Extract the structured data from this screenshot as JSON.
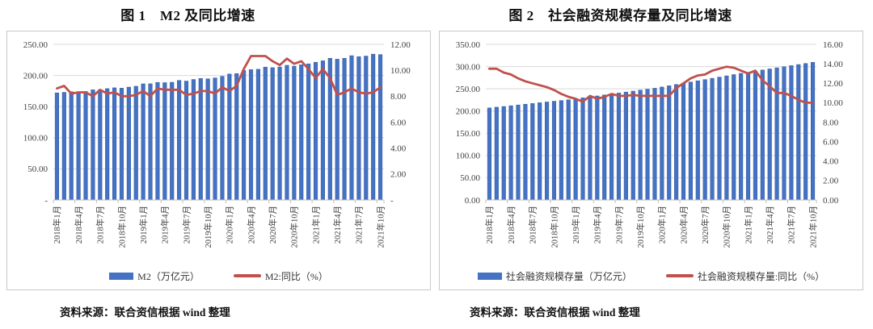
{
  "source_note": "资料来源：联合资信根据 wind 整理",
  "colors": {
    "bar": "#4472C4",
    "bar_edge": "#345A9E",
    "line": "#C0504D",
    "grid": "#d9d9d9",
    "axis_line": "#bfbfbf",
    "tick_text": "#404040",
    "box_border": "#c9c9c9"
  },
  "chart_data": [
    {
      "type": "bar",
      "subtype": "combo-bar-line",
      "title": "图 1　M2 及同比增速",
      "x": [
        "2018年1月",
        "2018年2月",
        "2018年3月",
        "2018年4月",
        "2018年5月",
        "2018年6月",
        "2018年7月",
        "2018年8月",
        "2018年9月",
        "2018年10月",
        "2018年11月",
        "2018年12月",
        "2019年1月",
        "2019年2月",
        "2019年3月",
        "2019年4月",
        "2019年5月",
        "2019年6月",
        "2019年7月",
        "2019年8月",
        "2019年9月",
        "2019年10月",
        "2019年11月",
        "2019年12月",
        "2020年1月",
        "2020年2月",
        "2020年3月",
        "2020年4月",
        "2020年5月",
        "2020年6月",
        "2020年7月",
        "2020年8月",
        "2020年9月",
        "2020年10月",
        "2020年11月",
        "2020年12月",
        "2021年1月",
        "2021年2月",
        "2021年3月",
        "2021年4月",
        "2021年5月",
        "2021年6月",
        "2021年7月",
        "2021年8月",
        "2021年9月",
        "2021年10月"
      ],
      "x_label_every": 3,
      "grid": true,
      "legend_position": "bottom",
      "left_axis": {
        "min": 0,
        "max": 250,
        "step": 50,
        "labels": [
          "250.00",
          "200.00",
          "150.00",
          "100.00",
          "50.00",
          "-"
        ]
      },
      "right_axis": {
        "min": 0,
        "max": 12,
        "step": 2,
        "labels": [
          "12.00",
          "10.00",
          "8.00",
          "6.00",
          "4.00",
          "2.00",
          "-"
        ]
      },
      "series": [
        {
          "name": "M2（万亿元）",
          "kind": "bar",
          "axis": "left",
          "color": "#4472C4",
          "values": [
            172.1,
            172.9,
            174.0,
            173.8,
            174.3,
            177.0,
            177.1,
            178.9,
            180.2,
            179.6,
            181.3,
            182.7,
            186.6,
            186.7,
            188.9,
            188.5,
            189.1,
            192.1,
            191.0,
            193.6,
            195.2,
            194.6,
            196.1,
            198.7,
            202.3,
            203.1,
            208.1,
            209.4,
            210.0,
            213.5,
            212.6,
            213.7,
            216.4,
            215.0,
            217.2,
            218.7,
            221.3,
            223.6,
            227.7,
            226.2,
            227.6,
            231.8,
            230.2,
            231.2,
            234.3,
            233.6
          ]
        },
        {
          "name": "M2:同比（%）",
          "kind": "line",
          "axis": "right",
          "color": "#C0504D",
          "values": [
            8.6,
            8.8,
            8.2,
            8.3,
            8.3,
            8.0,
            8.5,
            8.2,
            8.3,
            8.0,
            8.0,
            8.1,
            8.4,
            8.0,
            8.6,
            8.5,
            8.5,
            8.5,
            8.1,
            8.2,
            8.4,
            8.4,
            8.2,
            8.7,
            8.4,
            8.8,
            10.1,
            11.1,
            11.1,
            11.1,
            10.7,
            10.4,
            10.9,
            10.5,
            10.7,
            10.1,
            9.4,
            10.1,
            9.4,
            8.1,
            8.3,
            8.6,
            8.3,
            8.2,
            8.3,
            8.7
          ]
        }
      ]
    },
    {
      "type": "bar",
      "subtype": "combo-bar-line",
      "title": "图 2　社会融资规模存量及同比增速",
      "x": [
        "2018年1月",
        "2018年2月",
        "2018年3月",
        "2018年4月",
        "2018年5月",
        "2018年6月",
        "2018年7月",
        "2018年8月",
        "2018年9月",
        "2018年10月",
        "2018年11月",
        "2018年12月",
        "2019年1月",
        "2019年2月",
        "2019年3月",
        "2019年4月",
        "2019年5月",
        "2019年6月",
        "2019年7月",
        "2019年8月",
        "2019年9月",
        "2019年10月",
        "2019年11月",
        "2019年12月",
        "2020年1月",
        "2020年2月",
        "2020年3月",
        "2020年4月",
        "2020年5月",
        "2020年6月",
        "2020年7月",
        "2020年8月",
        "2020年9月",
        "2020年10月",
        "2020年11月",
        "2020年12月",
        "2021年1月",
        "2021年2月",
        "2021年3月",
        "2021年4月",
        "2021年5月",
        "2021年6月",
        "2021年7月",
        "2021年8月",
        "2021年9月",
        "2021年10月"
      ],
      "x_label_every": 3,
      "grid": true,
      "legend_position": "bottom",
      "left_axis": {
        "min": 0,
        "max": 350,
        "step": 50,
        "labels": [
          "350.00",
          "300.00",
          "250.00",
          "200.00",
          "150.00",
          "100.00",
          "50.00",
          "0.00"
        ]
      },
      "right_axis": {
        "min": 0,
        "max": 16,
        "step": 2,
        "labels": [
          "16.00",
          "14.00",
          "12.00",
          "10.00",
          "8.00",
          "6.00",
          "4.00",
          "2.00",
          "0.00"
        ]
      },
      "series": [
        {
          "name": "社会融资规模存量（万亿元）",
          "kind": "bar",
          "axis": "left",
          "color": "#4472C4",
          "values": [
            207.0,
            208.7,
            210.3,
            212.0,
            213.7,
            215.4,
            217.0,
            218.7,
            220.4,
            222.1,
            223.7,
            225.4,
            227.6,
            229.7,
            231.9,
            234.0,
            236.2,
            238.4,
            240.5,
            242.7,
            244.8,
            247.0,
            249.2,
            251.3,
            254.1,
            256.9,
            259.7,
            262.5,
            265.3,
            268.1,
            270.8,
            273.6,
            276.4,
            279.2,
            282.0,
            284.8,
            287.3,
            289.7,
            292.2,
            294.7,
            297.2,
            299.6,
            302.1,
            304.6,
            307.0,
            309.5
          ]
        },
        {
          "name": "社会融资规模存量:同比（%）",
          "kind": "line",
          "axis": "right",
          "color": "#C0504D",
          "values": [
            13.5,
            13.5,
            13.1,
            12.9,
            12.5,
            12.2,
            12.0,
            11.8,
            11.6,
            11.3,
            10.9,
            10.6,
            10.4,
            10.1,
            10.7,
            10.4,
            10.6,
            10.9,
            10.7,
            10.7,
            10.8,
            10.7,
            10.7,
            10.7,
            10.7,
            10.7,
            11.5,
            12.0,
            12.5,
            12.8,
            12.9,
            13.3,
            13.5,
            13.7,
            13.6,
            13.3,
            13.0,
            13.3,
            12.3,
            11.7,
            11.0,
            11.0,
            10.7,
            10.3,
            10.0,
            10.0
          ]
        }
      ]
    }
  ]
}
